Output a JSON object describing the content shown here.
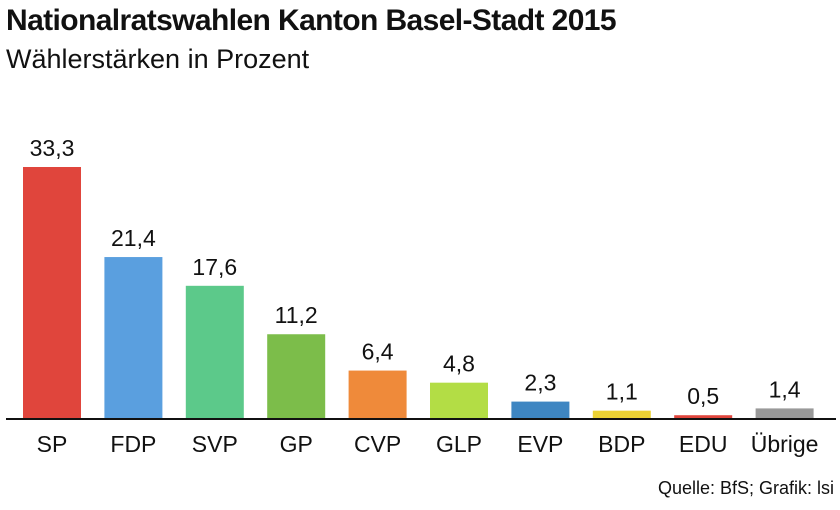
{
  "header": {
    "title": "Nationalratswahlen Kanton Basel-Stadt 2015",
    "subtitle": "Wählerstärken in Prozent"
  },
  "footer": {
    "source": "Quelle: BfS; Grafik: lsi"
  },
  "chart_data": {
    "type": "bar",
    "title": "Nationalratswahlen Kanton Basel-Stadt 2015",
    "subtitle": "Wählerstärken in Prozent",
    "xlabel": "",
    "ylabel": "",
    "ylim": [
      0,
      33.3
    ],
    "grid": false,
    "categories": [
      "SP",
      "FDP",
      "SVP",
      "GP",
      "CVP",
      "GLP",
      "EVP",
      "BDP",
      "EDU",
      "Übrige"
    ],
    "values": [
      33.3,
      21.4,
      17.6,
      11.2,
      6.4,
      4.8,
      2.3,
      1.1,
      0.5,
      1.4
    ],
    "value_labels": [
      "33,3",
      "21,4",
      "17,6",
      "11,2",
      "6,4",
      "4,8",
      "2,3",
      "1,1",
      "0,5",
      "1,4"
    ],
    "colors": [
      "#e0453c",
      "#5a9fdf",
      "#5cc98a",
      "#7cbd4a",
      "#ef8a3a",
      "#b3dd45",
      "#3e86c2",
      "#ecd234",
      "#e0453c",
      "#999999"
    ]
  }
}
